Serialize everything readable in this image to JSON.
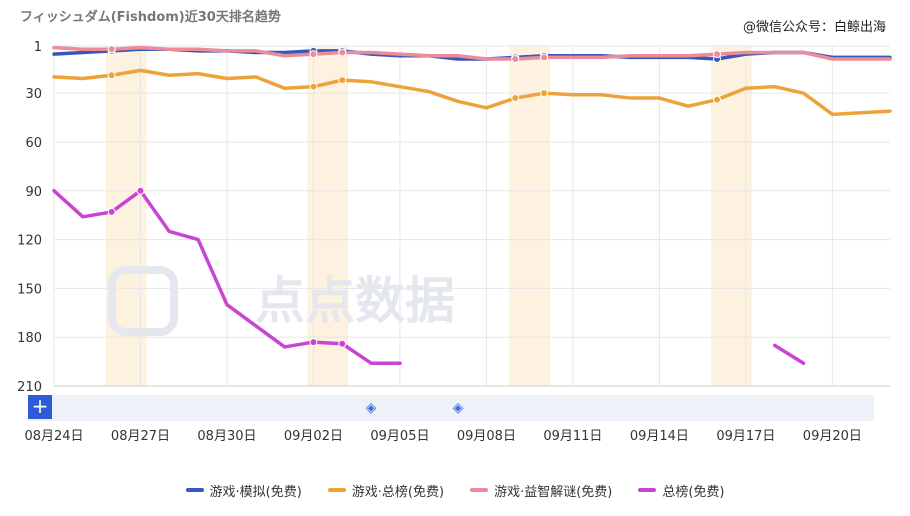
{
  "title": "フィッシュダム(Fishdom)近30天排名趋势",
  "credit": "@微信公众号：白鲸出海",
  "watermark": "点点数据",
  "controls": {
    "plus_label": "+"
  },
  "colors": {
    "blue": "#3a57b8",
    "orange": "#eea33a",
    "pink": "#ec8c99",
    "purple": "#c845d3",
    "highlight": "#fdf1e0",
    "grid": "#e6e6e6",
    "zoom_bar": "#eef1f7"
  },
  "chart_data": {
    "type": "line",
    "title": "フィッシュダム(Fishdom)近30天排名趋势",
    "xlabel": "",
    "ylabel": "",
    "y_inverted": true,
    "ylim": [
      1,
      210
    ],
    "yticks": [
      1,
      30,
      60,
      90,
      120,
      150,
      180,
      210
    ],
    "x": [
      "08月24日",
      "08月25日",
      "08月26日",
      "08月27日",
      "08月28日",
      "08月29日",
      "08月30日",
      "08月31日",
      "09月01日",
      "09月02日",
      "09月03日",
      "09月04日",
      "09月05日",
      "09月06日",
      "09月07日",
      "09月08日",
      "09月09日",
      "09月10日",
      "09月11日",
      "09月12日",
      "09月13日",
      "09月14日",
      "09月15日",
      "09月16日",
      "09月17日",
      "09月18日",
      "09月19日",
      "09月20日",
      "09月21日",
      "09月22日"
    ],
    "x_tick_labels": [
      "08月24日",
      "08月27日",
      "08月30日",
      "09月02日",
      "09月05日",
      "09月08日",
      "09月11日",
      "09月14日",
      "09月17日",
      "09月20日"
    ],
    "highlight_dates": [
      "08月26日",
      "08月27日",
      "09月02日",
      "09月03日",
      "09月09日",
      "09月10日",
      "09月16日",
      "09月17日"
    ],
    "series": [
      {
        "name": "游戏·模拟(免费)",
        "color": "#3a57b8",
        "values": [
          6,
          5,
          4,
          3,
          3,
          4,
          4,
          5,
          5,
          4,
          4,
          6,
          7,
          7,
          9,
          9,
          8,
          7,
          7,
          7,
          8,
          8,
          8,
          9,
          6,
          5,
          5,
          8,
          8,
          8
        ],
        "markers": [
          2,
          9,
          10,
          16,
          17,
          23
        ]
      },
      {
        "name": "游戏·总榜(免费)",
        "color": "#eea33a",
        "values": [
          20,
          21,
          19,
          16,
          19,
          18,
          21,
          20,
          27,
          26,
          22,
          23,
          26,
          29,
          35,
          39,
          33,
          30,
          31,
          31,
          33,
          33,
          38,
          34,
          27,
          26,
          30,
          43,
          42,
          41
        ],
        "markers": [
          2,
          9,
          10,
          16,
          17,
          23
        ]
      },
      {
        "name": "游戏·益智解谜(免费)",
        "color": "#ec8c99",
        "values": [
          2,
          3,
          3,
          2,
          3,
          3,
          4,
          4,
          7,
          6,
          5,
          5,
          6,
          7,
          7,
          9,
          9,
          8,
          8,
          8,
          7,
          7,
          7,
          6,
          5,
          5,
          5,
          9,
          9,
          9
        ],
        "markers": [
          2,
          9,
          10,
          16,
          17,
          23
        ]
      },
      {
        "name": "总榜(免费)",
        "color": "#c845d3",
        "values": [
          90,
          106,
          103,
          90,
          115,
          120,
          160,
          173,
          186,
          183,
          184,
          196,
          196,
          null,
          null,
          null,
          null,
          null,
          null,
          null,
          null,
          null,
          null,
          null,
          null,
          185,
          196,
          null,
          null,
          null
        ],
        "markers": [
          2,
          3,
          9,
          10
        ]
      }
    ]
  }
}
